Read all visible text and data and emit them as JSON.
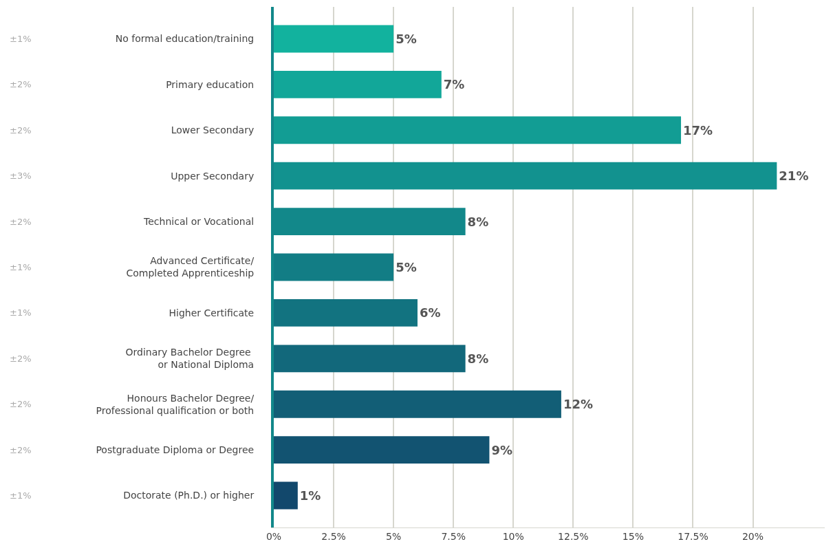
{
  "chart_data": {
    "type": "bar",
    "orientation": "horizontal",
    "categories": [
      "No formal education/training",
      "Primary education",
      "Lower Secondary",
      "Upper Secondary",
      "Technical or Vocational",
      "Advanced Certificate/\nCompleted Apprenticeship",
      "Higher Certificate",
      "Ordinary Bachelor Degree \nor National Diploma",
      "Honours Bachelor Degree/\nProfessional qualification or both",
      "Postgraduate Diploma or Degree",
      "Doctorate (Ph.D.) or higher"
    ],
    "values": [
      5,
      7,
      17,
      21,
      8,
      5,
      6,
      8,
      12,
      9,
      1
    ],
    "value_labels": [
      "5%",
      "7%",
      "17%",
      "21%",
      "8%",
      "5%",
      "6%",
      "8%",
      "12%",
      "9%",
      "1%"
    ],
    "colors": [
      "#12b29e",
      "#12a799",
      "#129d94",
      "#12928f",
      "#12888a",
      "#127d85",
      "#127380",
      "#12687b",
      "#125e76",
      "#125371",
      "#12486c"
    ],
    "annotations": [
      "±1%",
      "±2%",
      "±2%",
      "±3%",
      "±2%",
      "±1%",
      "±1%",
      "±2%",
      "±2%",
      "±2%",
      "±1%"
    ],
    "xlim": [
      0,
      23
    ],
    "xticks": [
      {
        "value": 0,
        "label": "0%"
      },
      {
        "value": 2.5,
        "label": "2.5%"
      },
      {
        "value": 5,
        "label": "5%"
      },
      {
        "value": 7.5,
        "label": "7.5%"
      },
      {
        "value": 10,
        "label": "10%"
      },
      {
        "value": 12.5,
        "label": "12.5%"
      },
      {
        "value": 15,
        "label": "15%"
      },
      {
        "value": 17.5,
        "label": "17.5%"
      },
      {
        "value": 20,
        "label": "20%"
      }
    ],
    "grid": "x"
  }
}
